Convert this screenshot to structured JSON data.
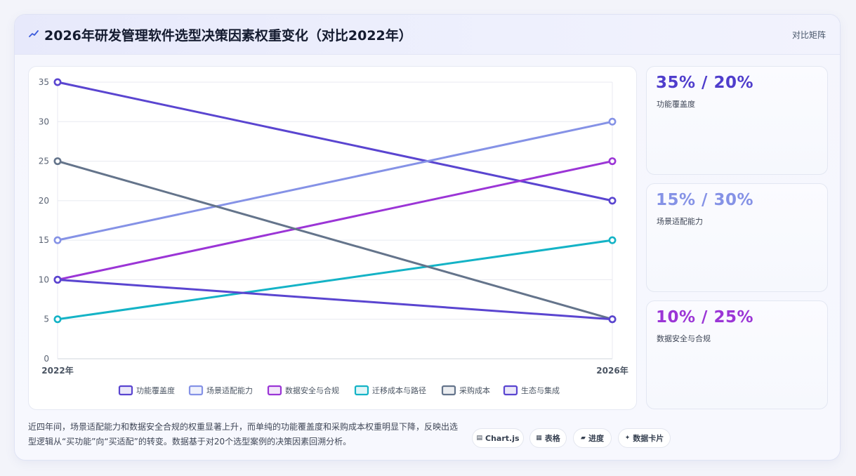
{
  "header": {
    "title": "2026年研发管理软件选型决策因素权重变化（对比2022年）",
    "link_label": "对比矩阵",
    "icon": "trend-icon"
  },
  "chart_data": {
    "type": "line",
    "x": [
      "2022年",
      "2026年"
    ],
    "yticks": [
      0,
      5,
      10,
      15,
      20,
      25,
      30,
      35
    ],
    "ylim": [
      0,
      35
    ],
    "grid": true,
    "legend_position": "bottom",
    "series": [
      {
        "name": "功能覆盖度",
        "values": [
          35,
          20
        ],
        "color": "#5a45d0"
      },
      {
        "name": "场景适配能力",
        "values": [
          15,
          30
        ],
        "color": "#8592e6"
      },
      {
        "name": "数据安全与合规",
        "values": [
          10,
          25
        ],
        "color": "#9b35d6"
      },
      {
        "name": "迁移成本与路径",
        "values": [
          5,
          15
        ],
        "color": "#14b3c6"
      },
      {
        "name": "采购成本",
        "values": [
          25,
          5
        ],
        "color": "#64748b"
      },
      {
        "name": "生态与集成",
        "values": [
          10,
          5
        ],
        "color": "#5a45d0"
      }
    ]
  },
  "stats": [
    {
      "value": "35% / 20%",
      "label": "功能覆盖度",
      "color": "#4f3dcc"
    },
    {
      "value": "15% / 30%",
      "label": "场景适配能力",
      "color": "#8592e6"
    },
    {
      "value": "10% / 25%",
      "label": "数据安全与合规",
      "color": "#9b35d6"
    }
  ],
  "note": "近四年间，场景适配能力和数据安全合规的权重显著上升，而单纯的功能覆盖度和采购成本权重明显下降，反映出选型逻辑从“买功能”向“买适配”的转变。数据基于对20个选型案例的决策因素回溯分析。",
  "chips": [
    {
      "label": "Chart.js",
      "icon": "▤"
    },
    {
      "label": "表格",
      "icon": "▦"
    },
    {
      "label": "进度",
      "icon": "▰"
    },
    {
      "label": "数据卡片",
      "icon": "✦"
    }
  ]
}
